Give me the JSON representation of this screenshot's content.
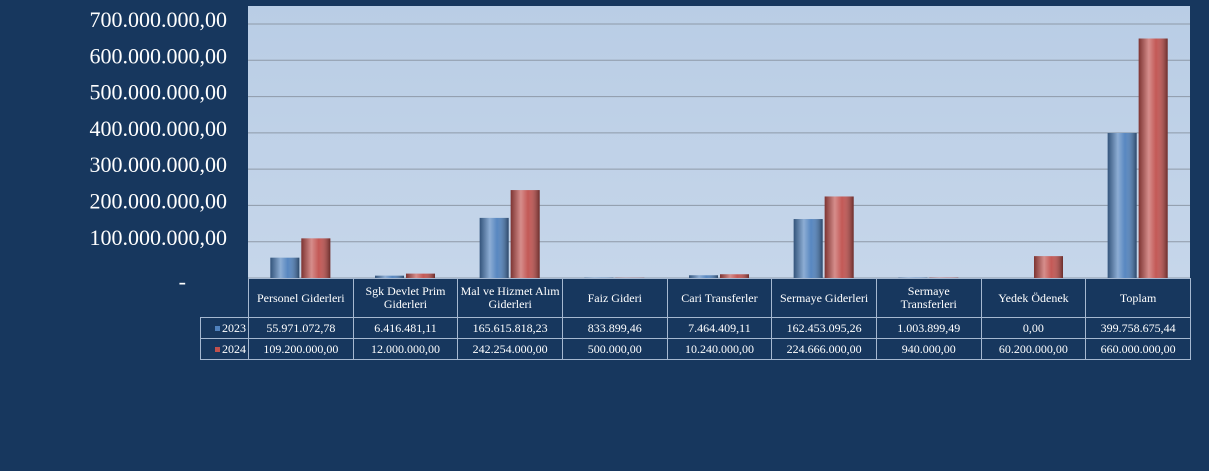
{
  "chart_data": {
    "type": "bar",
    "categories": [
      "Personel Giderleri",
      "Sgk Devlet Prim Giderleri",
      "Mal ve Hizmet Alım Giderleri",
      "Faiz Gideri",
      "Cari Transferler",
      "Sermaye Giderleri",
      "Sermaye Transferleri",
      "Yedek Ödenek",
      "Toplam"
    ],
    "series": [
      {
        "name": "2023",
        "color": "#4f81bd",
        "values": [
          55971072.78,
          6416481.11,
          165615818.23,
          833899.46,
          7464409.11,
          162453095.26,
          1003899.49,
          0,
          399758675.44
        ],
        "value_labels": [
          "55.971.072,78",
          "6.416.481,11",
          "165.615.818,23",
          "833.899,46",
          "7.464.409,11",
          "162.453.095,26",
          "1.003.899,49",
          "0,00",
          "399.758.675,44"
        ]
      },
      {
        "name": "2024",
        "color": "#c0504d",
        "values": [
          109200000,
          12000000,
          242254000,
          500000,
          10240000,
          224666000,
          940000,
          60200000,
          660000000
        ],
        "value_labels": [
          "109.200.000,00",
          "12.000.000,00",
          "242.254.000,00",
          "500.000,00",
          "10.240.000,00",
          "224.666.000,00",
          "940.000,00",
          "60.200.000,00",
          "660.000.000,00"
        ]
      }
    ],
    "ylim": [
      0,
      700000000
    ],
    "yticks": [
      {
        "value": 0,
        "label": "-"
      },
      {
        "value": 100000000,
        "label": "100.000.000,00"
      },
      {
        "value": 200000000,
        "label": "200.000.000,00"
      },
      {
        "value": 300000000,
        "label": "300.000.000,00"
      },
      {
        "value": 400000000,
        "label": "400.000.000,00"
      },
      {
        "value": 500000000,
        "label": "500.000.000,00"
      },
      {
        "value": 600000000,
        "label": "600.000.000,00"
      },
      {
        "value": 700000000,
        "label": "700.000.000,00"
      }
    ],
    "grid": true
  }
}
